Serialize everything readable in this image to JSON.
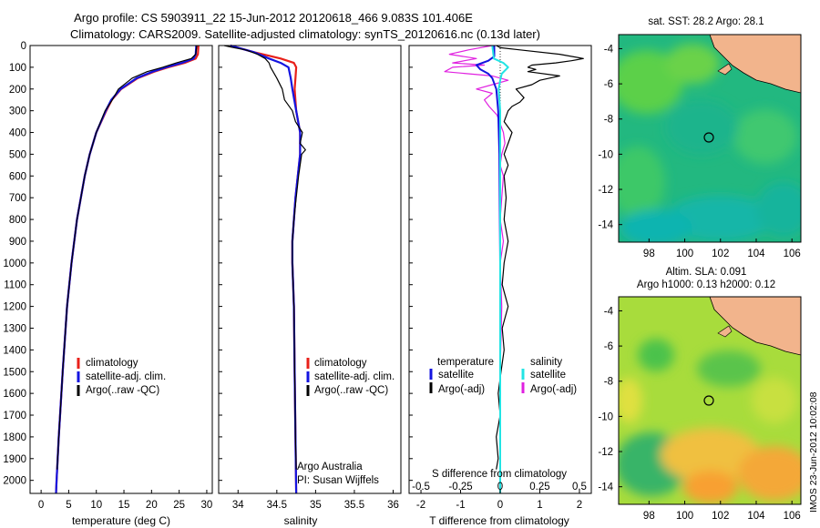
{
  "title": {
    "line1": "Argo profile: CS 5903911_22 15-Jun-2012 20120618_466 9.083S 101.406E",
    "line2": "Climatology: CARS2009. Satellite-adjusted climatology: synTS_20120616.nc (0.13d later)"
  },
  "colors": {
    "climatology": "#e8201a",
    "satellite": "#1414e0",
    "argo": "#000000",
    "s_satellite": "#22e4e4",
    "s_argo": "#e020e0",
    "land": "#f2b48c"
  },
  "depth_axis": {
    "ticks": [
      "0",
      "100",
      "200",
      "300",
      "400",
      "500",
      "600",
      "700",
      "800",
      "900",
      "1000",
      "1100",
      "1200",
      "1300",
      "1400",
      "1500",
      "1600",
      "1700",
      "1800",
      "1900",
      "2000"
    ]
  },
  "map_lat_ticks": [
    "-4",
    "-6",
    "-8",
    "-10",
    "-12",
    "-14"
  ],
  "map_lon_ticks": [
    "98",
    "100",
    "102",
    "104",
    "106"
  ],
  "chart_data": [
    {
      "type": "line",
      "xlabel": "temperature (deg C)",
      "x_ticks": [
        "0",
        "5",
        "10",
        "15",
        "20",
        "25",
        "30"
      ],
      "xlim": [
        -2,
        31
      ],
      "ylim": [
        2060,
        0
      ],
      "legend": [
        "climatology",
        "satellite-adj. clim.",
        "Argo(..raw -QC)"
      ],
      "series": [
        {
          "name": "climatology",
          "depth": [
            0,
            40,
            60,
            80,
            100,
            120,
            150,
            200,
            250,
            300,
            400,
            500,
            600,
            800,
            1000,
            1200,
            1500,
            1800,
            2000,
            2060
          ],
          "values": [
            28.5,
            28.4,
            28.0,
            26.0,
            23.0,
            20.5,
            17.5,
            14.5,
            12.8,
            11.8,
            10.0,
            8.8,
            7.9,
            6.5,
            5.5,
            4.7,
            3.9,
            3.2,
            2.8,
            2.7
          ]
        },
        {
          "name": "satellite-adj. clim.",
          "depth": [
            0,
            40,
            60,
            80,
            100,
            120,
            150,
            200,
            250,
            300,
            400,
            500,
            600,
            800,
            1000,
            1200,
            1500,
            1800,
            2000,
            2060
          ],
          "values": [
            28.1,
            28.0,
            27.6,
            25.5,
            22.6,
            20.2,
            17.3,
            14.4,
            12.7,
            11.7,
            10.0,
            8.8,
            7.9,
            6.5,
            5.5,
            4.7,
            3.9,
            3.2,
            2.8,
            2.7
          ]
        },
        {
          "name": "Argo(..raw -QC)",
          "depth": [
            0,
            40,
            60,
            80,
            100,
            120,
            150,
            200,
            250,
            300,
            400,
            500,
            600,
            800,
            1000,
            1200,
            1500,
            1800,
            1950
          ],
          "values": [
            28.2,
            28.0,
            27.2,
            24.5,
            22.0,
            19.2,
            16.5,
            14.0,
            12.9,
            11.6,
            10.0,
            8.8,
            7.9,
            6.5,
            5.5,
            4.7,
            3.9,
            3.2,
            2.9
          ]
        }
      ]
    },
    {
      "type": "line",
      "xlabel": "salinity",
      "x_ticks": [
        "34",
        "34.5",
        "35",
        "35.5",
        "36"
      ],
      "xlim": [
        33.75,
        36.1
      ],
      "ylim": [
        2060,
        0
      ],
      "legend": [
        "climatology",
        "satellite-adj. clim.",
        "Argo(..raw -QC)"
      ],
      "annotation": [
        "Argo Australia",
        "PI: Susan Wijffels"
      ],
      "series": [
        {
          "name": "climatology",
          "depth": [
            0,
            30,
            60,
            80,
            100,
            150,
            200,
            300,
            400,
            500,
            700,
            900,
            1000,
            1200,
            1500,
            1800,
            2060
          ],
          "values": [
            33.9,
            34.2,
            34.55,
            34.72,
            34.75,
            34.74,
            34.73,
            34.75,
            34.8,
            34.8,
            34.74,
            34.7,
            34.7,
            34.72,
            34.73,
            34.74,
            34.75
          ]
        },
        {
          "name": "satellite-adj. clim.",
          "depth": [
            0,
            30,
            60,
            80,
            100,
            150,
            200,
            300,
            400,
            500,
            700,
            900,
            1000,
            1200,
            1500,
            1800,
            2060
          ],
          "values": [
            33.9,
            34.2,
            34.4,
            34.55,
            34.65,
            34.68,
            34.7,
            34.75,
            34.8,
            34.8,
            34.74,
            34.7,
            34.7,
            34.72,
            34.73,
            34.74,
            34.75
          ]
        },
        {
          "name": "Argo(..raw -QC)",
          "depth": [
            0,
            10,
            20,
            40,
            60,
            80,
            100,
            150,
            200,
            250,
            300,
            350,
            400,
            450,
            480,
            500,
            600,
            700,
            800,
            900,
            1000,
            1100,
            1200,
            1500,
            1800,
            1950
          ],
          "values": [
            33.82,
            33.95,
            34.1,
            34.25,
            34.35,
            34.4,
            34.42,
            34.5,
            34.57,
            34.6,
            34.7,
            34.74,
            34.83,
            34.8,
            34.87,
            34.82,
            34.78,
            34.75,
            34.72,
            34.7,
            34.7,
            34.71,
            34.72,
            34.73,
            34.74,
            34.75
          ]
        }
      ]
    },
    {
      "type": "line",
      "xlabel": "T difference from climatology",
      "x_ticks": [
        "-2",
        "-1",
        "0",
        "1",
        "2"
      ],
      "xlim": [
        -2.3,
        2.3
      ],
      "xlabel_top": "S difference from climatology",
      "x_ticks_top": [
        "-0.5",
        "-0.25",
        "0",
        "0.25",
        "0.5"
      ],
      "xlim_top": [
        -0.575,
        0.575
      ],
      "ylim": [
        2060,
        0
      ],
      "legend_headers": [
        "temperature",
        "salinity"
      ],
      "legend": [
        "satellite",
        "Argo(-adj)",
        "satellite",
        "Argo(-adj)"
      ],
      "series": [
        {
          "name": "satellite",
          "depth": [
            0,
            50,
            70,
            90,
            110,
            130,
            150,
            200,
            300,
            500,
            1000,
            2060
          ],
          "values": [
            -0.15,
            -0.15,
            -0.3,
            -0.6,
            -0.5,
            -0.3,
            -0.2,
            -0.1,
            -0.05,
            -0.02,
            0.0,
            0.0
          ]
        },
        {
          "name": "Argo(-adj)",
          "depth": [
            0,
            10,
            20,
            40,
            60,
            70,
            80,
            90,
            100,
            110,
            120,
            140,
            160,
            180,
            200,
            220,
            240,
            260,
            280,
            300,
            350,
            400,
            450,
            500,
            550,
            600,
            700,
            800,
            900,
            1000,
            1100,
            1200,
            1300,
            1400,
            1500,
            1600,
            1700,
            1800,
            1900,
            1950
          ],
          "values": [
            -0.1,
            0.0,
            0.5,
            1.5,
            2.1,
            1.8,
            1.4,
            0.8,
            0.7,
            0.9,
            0.7,
            1.5,
            1.0,
            0.8,
            0.4,
            0.5,
            0.6,
            0.5,
            0.3,
            0.2,
            0.1,
            0.3,
            0.2,
            0.1,
            0.2,
            0.1,
            0.15,
            0.1,
            0.2,
            0.1,
            0.05,
            0.2,
            0.05,
            0.1,
            0.02,
            -0.05,
            0.0,
            -0.1,
            -0.05,
            -0.1
          ]
        },
        {
          "name": "s_satellite",
          "depth": [
            0,
            60,
            80,
            100,
            130,
            160,
            200,
            300,
            500,
            1000,
            2060
          ],
          "values": [
            -0.05,
            -0.04,
            0.02,
            0.05,
            0.01,
            0.0,
            -0.01,
            0.0,
            0.0,
            0.0,
            0.0
          ]
        },
        {
          "name": "s_argo",
          "depth": [
            0,
            20,
            40,
            60,
            80,
            90,
            100,
            120,
            140,
            160,
            180,
            200,
            220,
            250,
            280,
            320,
            360,
            400,
            450,
            500,
            550,
            600,
            700,
            800,
            900,
            1000,
            1200,
            1500,
            1800,
            1950
          ],
          "values": [
            -0.05,
            -0.2,
            -0.32,
            -0.15,
            -0.3,
            -0.1,
            -0.3,
            -0.35,
            -0.05,
            0.05,
            -0.05,
            -0.15,
            -0.05,
            -0.1,
            -0.07,
            -0.02,
            0.0,
            0.02,
            0.03,
            0.01,
            0.0,
            0.02,
            0.01,
            0.0,
            0.02,
            0.0,
            0.01,
            0.0,
            0.0,
            0.0
          ]
        }
      ]
    },
    {
      "type": "heatmap",
      "title": "sat. SST: 28.2  Argo: 28.1",
      "lat_range": [
        -15,
        -3.2
      ],
      "lon_range": [
        96.3,
        106.5
      ],
      "marker": {
        "lat": -9.083,
        "lon": 101.406
      }
    },
    {
      "type": "heatmap",
      "title_lines": [
        "Altim. SLA: 0.091",
        "Argo h1000: 0.13 h2000: 0.12"
      ],
      "lat_range": [
        -15,
        -3.2
      ],
      "lon_range": [
        96.3,
        106.5
      ],
      "marker": {
        "lat": -9.083,
        "lon": 101.406
      }
    }
  ],
  "side_text": "IMOS 23-Jun-2012 10:02:08"
}
